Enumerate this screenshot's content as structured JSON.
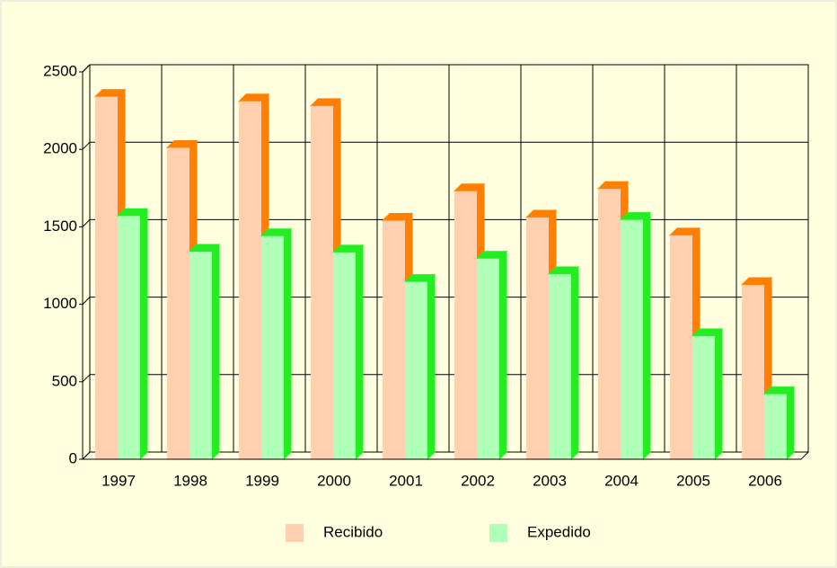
{
  "chart_data": {
    "type": "bar3d",
    "categories": [
      "1997",
      "1998",
      "1999",
      "2000",
      "2001",
      "2002",
      "2003",
      "2004",
      "2005",
      "2006"
    ],
    "series": [
      {
        "name": "Recibido",
        "color": "#ffd0b0",
        "side_color": "#ff8000",
        "values": [
          2340,
          2010,
          2310,
          2280,
          1540,
          1730,
          1560,
          1745,
          1445,
          1125
        ]
      },
      {
        "name": "Expedido",
        "color": "#b0ffb8",
        "side_color": "#22ee22",
        "values": [
          1570,
          1340,
          1440,
          1335,
          1145,
          1295,
          1195,
          1545,
          795,
          420
        ]
      }
    ],
    "ylim": [
      0,
      2500
    ],
    "yticks": [
      0,
      500,
      1000,
      1500,
      2000,
      2500
    ],
    "grid": true
  }
}
